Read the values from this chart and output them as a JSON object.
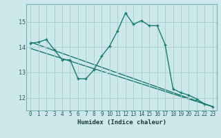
{
  "xlabel": "Humidex (Indice chaleur)",
  "bg_color": "#cce8ea",
  "grid_color": "#aacfd2",
  "line_color": "#1a7a6e",
  "spine_color": "#7ab0b5",
  "x_min": -0.5,
  "x_max": 23.5,
  "y_min": 11.5,
  "y_max": 15.7,
  "y_ticks": [
    12,
    13,
    14,
    15
  ],
  "x_ticks": [
    0,
    1,
    2,
    3,
    4,
    5,
    6,
    7,
    8,
    9,
    10,
    11,
    12,
    13,
    14,
    15,
    16,
    17,
    18,
    19,
    20,
    21,
    22,
    23
  ],
  "line1_x": [
    0,
    1,
    2,
    3,
    4,
    5,
    6,
    7,
    8,
    9,
    10,
    11,
    12,
    13,
    14,
    15,
    16,
    17,
    18,
    19,
    20,
    21,
    22,
    23
  ],
  "line1_y": [
    14.15,
    14.2,
    14.3,
    13.9,
    13.5,
    13.5,
    12.75,
    12.75,
    13.1,
    13.65,
    14.05,
    14.65,
    15.35,
    14.9,
    15.05,
    14.85,
    14.85,
    14.1,
    12.35,
    12.2,
    12.1,
    11.95,
    11.75,
    11.65
  ],
  "line2_y_start": 14.2,
  "line2_y_end": 11.65,
  "line3_y_start": 13.95,
  "line3_y_end": 11.65,
  "tick_fontsize": 5.5,
  "xlabel_fontsize": 6.5
}
